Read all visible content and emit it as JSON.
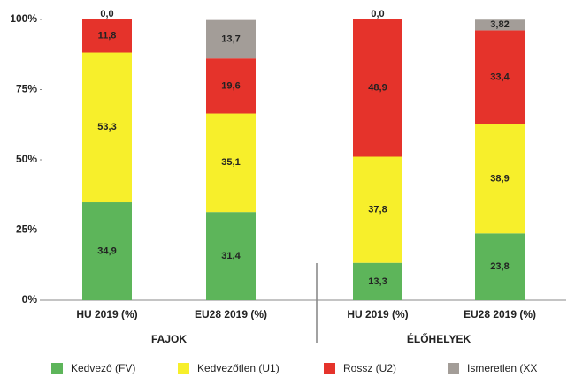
{
  "chart_data": {
    "type": "stacked_bar",
    "categories": [
      "HU 2019 (%)",
      "EU28 2019 (%)",
      "HU 2019 (%)",
      "EU28 2019 (%)"
    ],
    "groups": [
      {
        "label": "FAJOK",
        "categories": [
          0,
          1
        ]
      },
      {
        "label": "ÉLŐHELYEK",
        "categories": [
          2,
          3
        ]
      }
    ],
    "series": [
      {
        "name": "Kedvező (FV)",
        "color": "#5db55a",
        "values": [
          34.9,
          31.4,
          13.3,
          23.8
        ],
        "value_labels": [
          "34,9",
          "31,4",
          "13,3",
          "23,8"
        ]
      },
      {
        "name": "Kedvezőtlen (U1)",
        "color": "#f7ef2b",
        "values": [
          53.3,
          35.1,
          37.8,
          38.9
        ],
        "value_labels": [
          "53,3",
          "35,1",
          "37,8",
          "38,9"
        ]
      },
      {
        "name": "Rossz (U2)",
        "color": "#e5332b",
        "values": [
          11.8,
          19.6,
          48.9,
          33.4
        ],
        "value_labels": [
          "11,8",
          "19,6",
          "48,9",
          "33,4"
        ]
      },
      {
        "name": "Ismeretlen (XX",
        "color": "#a39d98",
        "values": [
          0.0,
          13.7,
          0.0,
          3.82
        ],
        "value_labels": [
          "0,0",
          "13,7",
          "0,0",
          "3,82"
        ]
      }
    ],
    "ylim": [
      0,
      100
    ],
    "yticks": [
      {
        "value": 0,
        "label": "0%"
      },
      {
        "value": 25,
        "label": "25%"
      },
      {
        "value": 50,
        "label": "50%"
      },
      {
        "value": 75,
        "label": "75%"
      },
      {
        "value": 100,
        "label": "100%"
      }
    ],
    "legend": "bottom"
  }
}
